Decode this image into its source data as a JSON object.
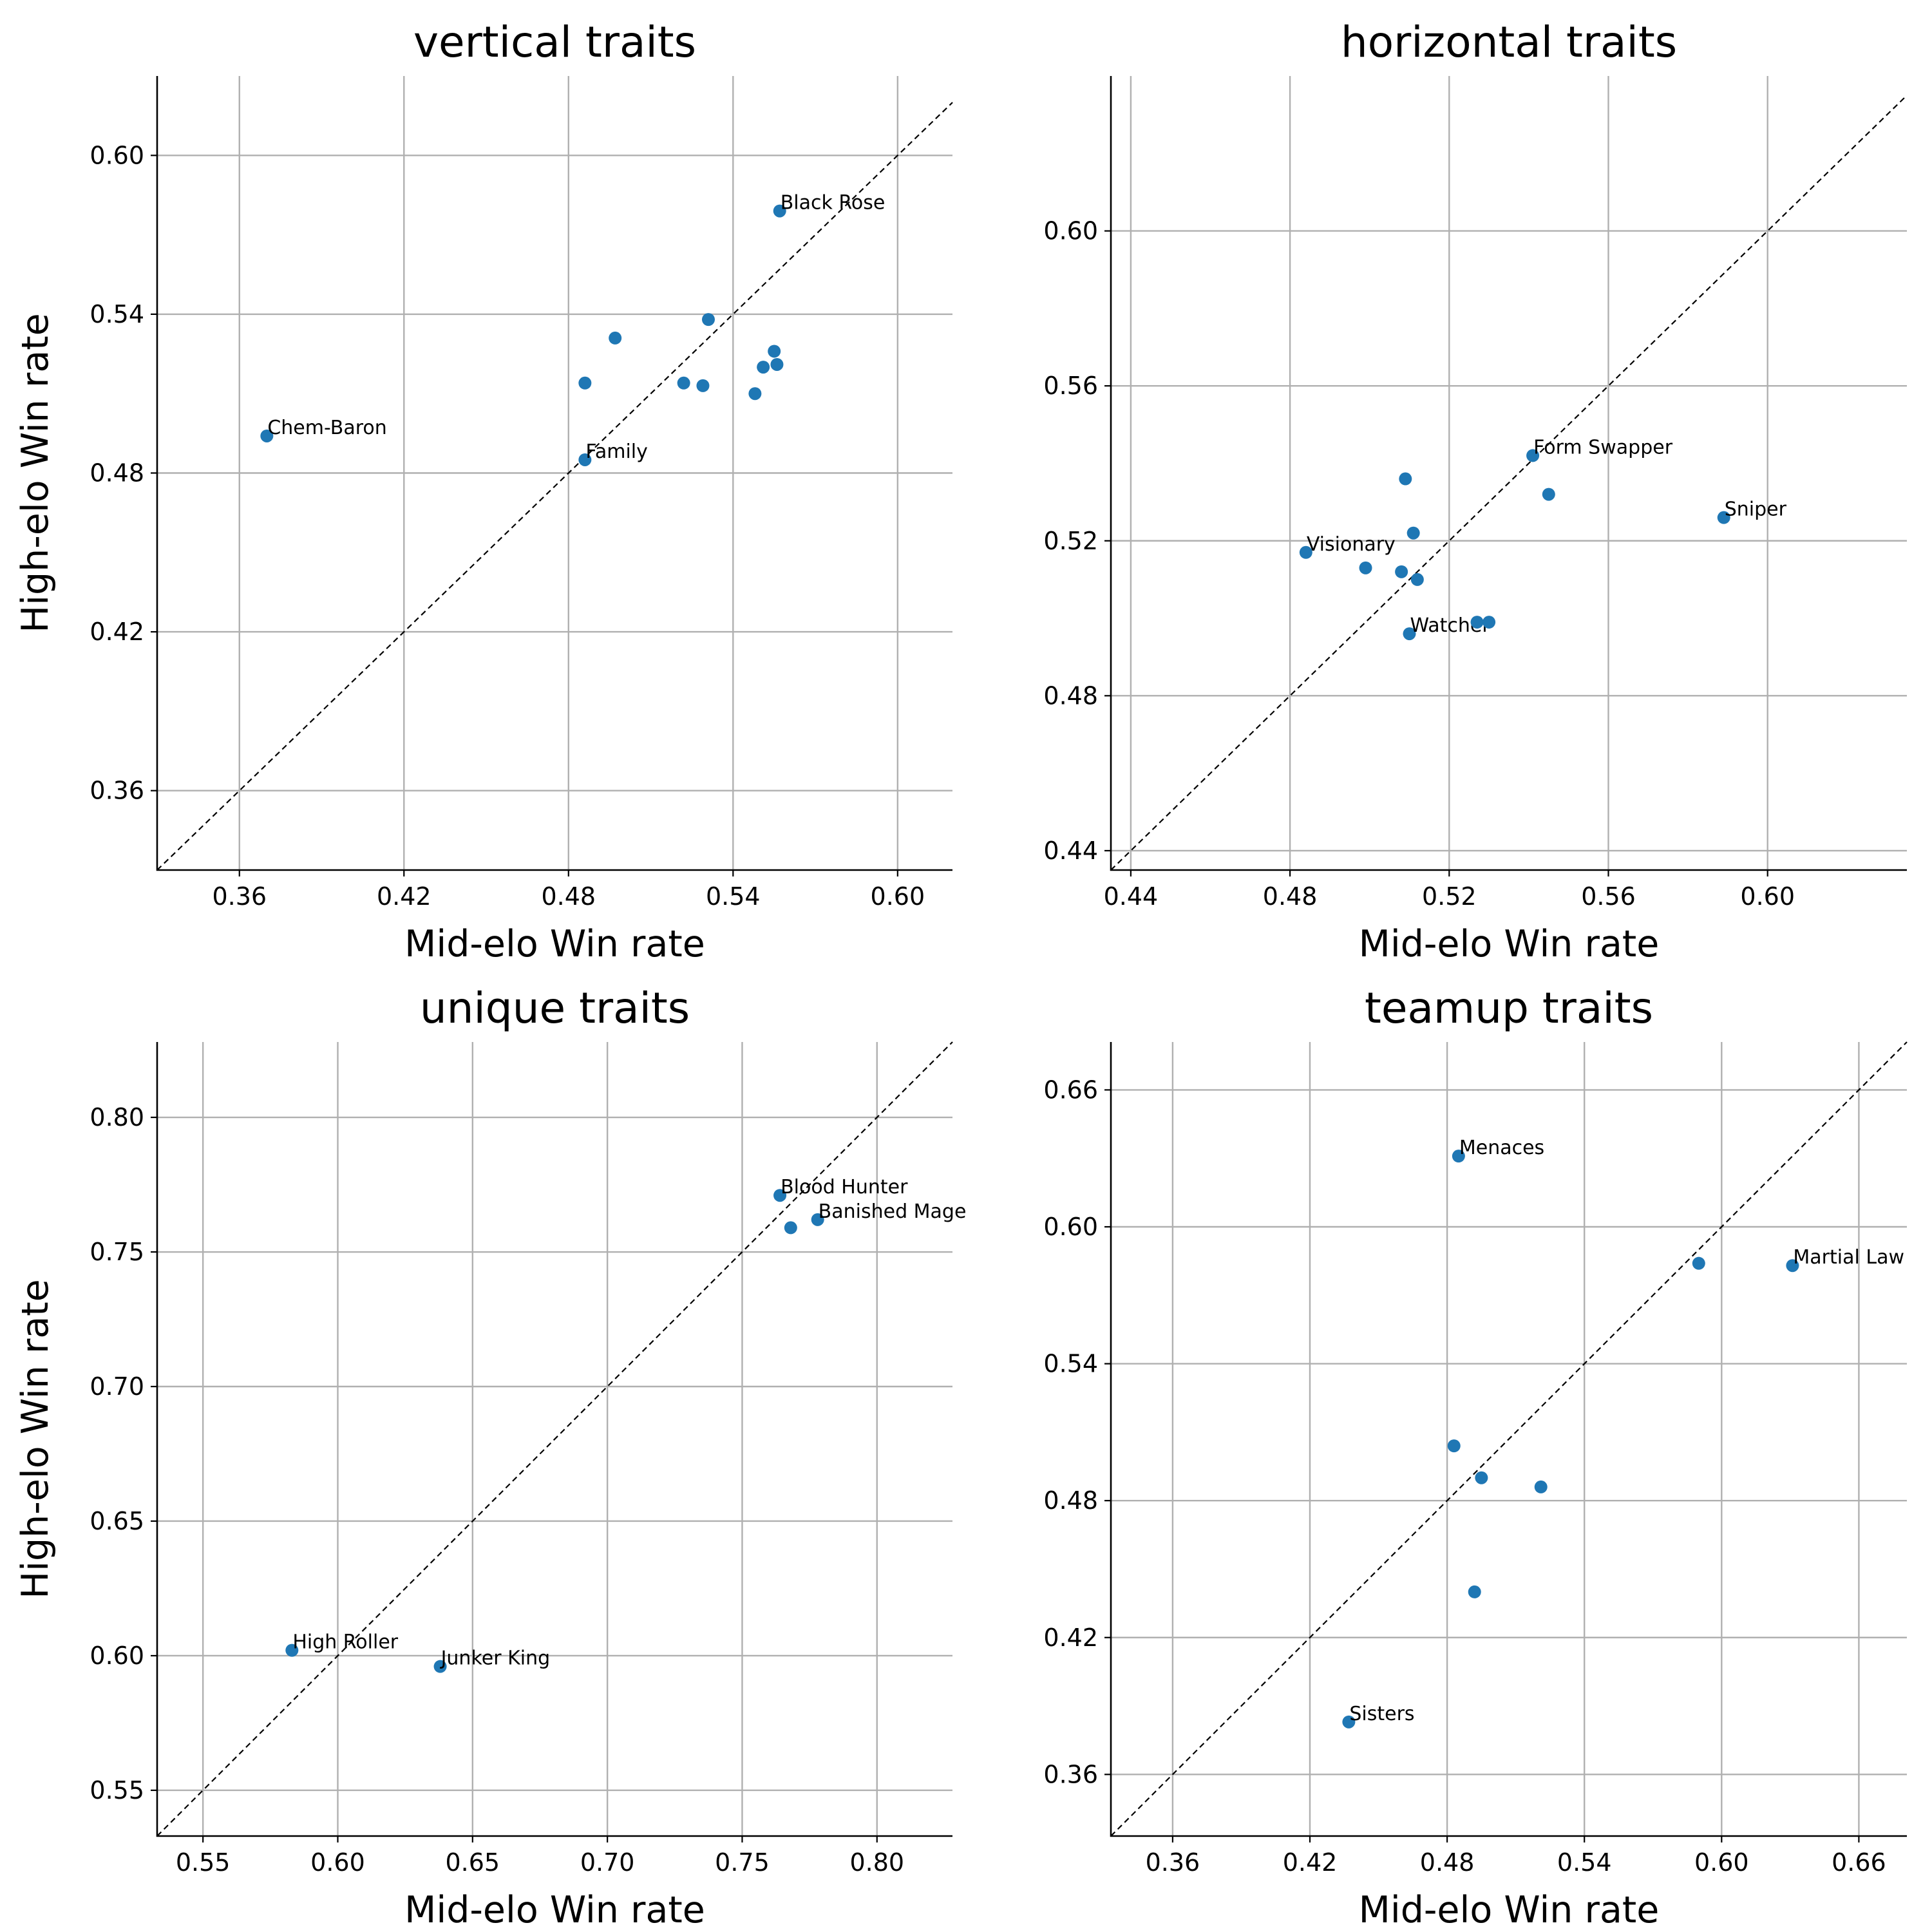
{
  "colors": {
    "marker": "#1f77b4",
    "grid": "#b0b0b0",
    "diagonal": "#000000"
  },
  "chart_data": [
    {
      "type": "scatter",
      "title": "vertical traits",
      "xlabel": "Mid-elo Win rate",
      "ylabel": "High-elo Win rate",
      "xlim": [
        0.33,
        0.62
      ],
      "ylim": [
        0.33,
        0.63
      ],
      "xticks": [
        "0.36",
        "0.42",
        "0.48",
        "0.54",
        "0.60"
      ],
      "yticks": [
        "0.36",
        "0.42",
        "0.48",
        "0.54",
        "0.60"
      ],
      "grid": true,
      "reference_line": "y = x",
      "points": [
        {
          "x": 0.557,
          "y": 0.579,
          "label": "Black Rose"
        },
        {
          "x": 0.37,
          "y": 0.494,
          "label": "Chem-Baron"
        },
        {
          "x": 0.486,
          "y": 0.485,
          "label": "Family"
        },
        {
          "x": 0.531,
          "y": 0.538,
          "label": ""
        },
        {
          "x": 0.497,
          "y": 0.531,
          "label": ""
        },
        {
          "x": 0.555,
          "y": 0.526,
          "label": ""
        },
        {
          "x": 0.556,
          "y": 0.521,
          "label": ""
        },
        {
          "x": 0.551,
          "y": 0.52,
          "label": ""
        },
        {
          "x": 0.486,
          "y": 0.514,
          "label": ""
        },
        {
          "x": 0.522,
          "y": 0.514,
          "label": ""
        },
        {
          "x": 0.529,
          "y": 0.513,
          "label": ""
        },
        {
          "x": 0.548,
          "y": 0.51,
          "label": ""
        }
      ]
    },
    {
      "type": "scatter",
      "title": "horizontal traits",
      "xlabel": "Mid-elo Win rate",
      "ylabel": "",
      "xlim": [
        0.435,
        0.635
      ],
      "ylim": [
        0.435,
        0.64
      ],
      "xticks": [
        "0.44",
        "0.48",
        "0.52",
        "0.56",
        "0.60"
      ],
      "yticks": [
        "0.44",
        "0.48",
        "0.52",
        "0.56",
        "0.60"
      ],
      "grid": true,
      "reference_line": "y = x",
      "points": [
        {
          "x": 0.541,
          "y": 0.542,
          "label": "Form Swapper"
        },
        {
          "x": 0.589,
          "y": 0.526,
          "label": "Sniper"
        },
        {
          "x": 0.484,
          "y": 0.517,
          "label": "Visionary"
        },
        {
          "x": 0.51,
          "y": 0.496,
          "label": "Watcher"
        },
        {
          "x": 0.509,
          "y": 0.536,
          "label": ""
        },
        {
          "x": 0.545,
          "y": 0.532,
          "label": ""
        },
        {
          "x": 0.511,
          "y": 0.522,
          "label": ""
        },
        {
          "x": 0.499,
          "y": 0.513,
          "label": ""
        },
        {
          "x": 0.508,
          "y": 0.512,
          "label": ""
        },
        {
          "x": 0.512,
          "y": 0.51,
          "label": ""
        },
        {
          "x": 0.527,
          "y": 0.499,
          "label": ""
        },
        {
          "x": 0.53,
          "y": 0.499,
          "label": ""
        }
      ]
    },
    {
      "type": "scatter",
      "title": "unique traits",
      "xlabel": "Mid-elo Win rate",
      "ylabel": "High-elo Win rate",
      "xlim": [
        0.533,
        0.828
      ],
      "ylim": [
        0.533,
        0.828
      ],
      "xticks": [
        "0.55",
        "0.60",
        "0.65",
        "0.70",
        "0.75",
        "0.80"
      ],
      "yticks": [
        "0.55",
        "0.60",
        "0.65",
        "0.70",
        "0.75",
        "0.80"
      ],
      "grid": true,
      "reference_line": "y = x",
      "points": [
        {
          "x": 0.764,
          "y": 0.771,
          "label": "Blood Hunter"
        },
        {
          "x": 0.778,
          "y": 0.762,
          "label": "Banished Mage"
        },
        {
          "x": 0.768,
          "y": 0.759,
          "label": ""
        },
        {
          "x": 0.583,
          "y": 0.602,
          "label": "High Roller"
        },
        {
          "x": 0.638,
          "y": 0.596,
          "label": "Junker King"
        }
      ]
    },
    {
      "type": "scatter",
      "title": "teamup traits",
      "xlabel": "Mid-elo Win rate",
      "ylabel": "",
      "xlim": [
        0.333,
        0.681
      ],
      "ylim": [
        0.333,
        0.681
      ],
      "xticks": [
        "0.36",
        "0.42",
        "0.48",
        "0.54",
        "0.60",
        "0.66"
      ],
      "yticks": [
        "0.36",
        "0.42",
        "0.48",
        "0.54",
        "0.60",
        "0.66"
      ],
      "grid": true,
      "reference_line": "y = x",
      "points": [
        {
          "x": 0.485,
          "y": 0.631,
          "label": "Menaces"
        },
        {
          "x": 0.631,
          "y": 0.583,
          "label": "Martial Law"
        },
        {
          "x": 0.59,
          "y": 0.584,
          "label": ""
        },
        {
          "x": 0.483,
          "y": 0.504,
          "label": ""
        },
        {
          "x": 0.495,
          "y": 0.49,
          "label": ""
        },
        {
          "x": 0.521,
          "y": 0.486,
          "label": ""
        },
        {
          "x": 0.492,
          "y": 0.44,
          "label": ""
        },
        {
          "x": 0.437,
          "y": 0.383,
          "label": "Sisters"
        }
      ]
    }
  ]
}
